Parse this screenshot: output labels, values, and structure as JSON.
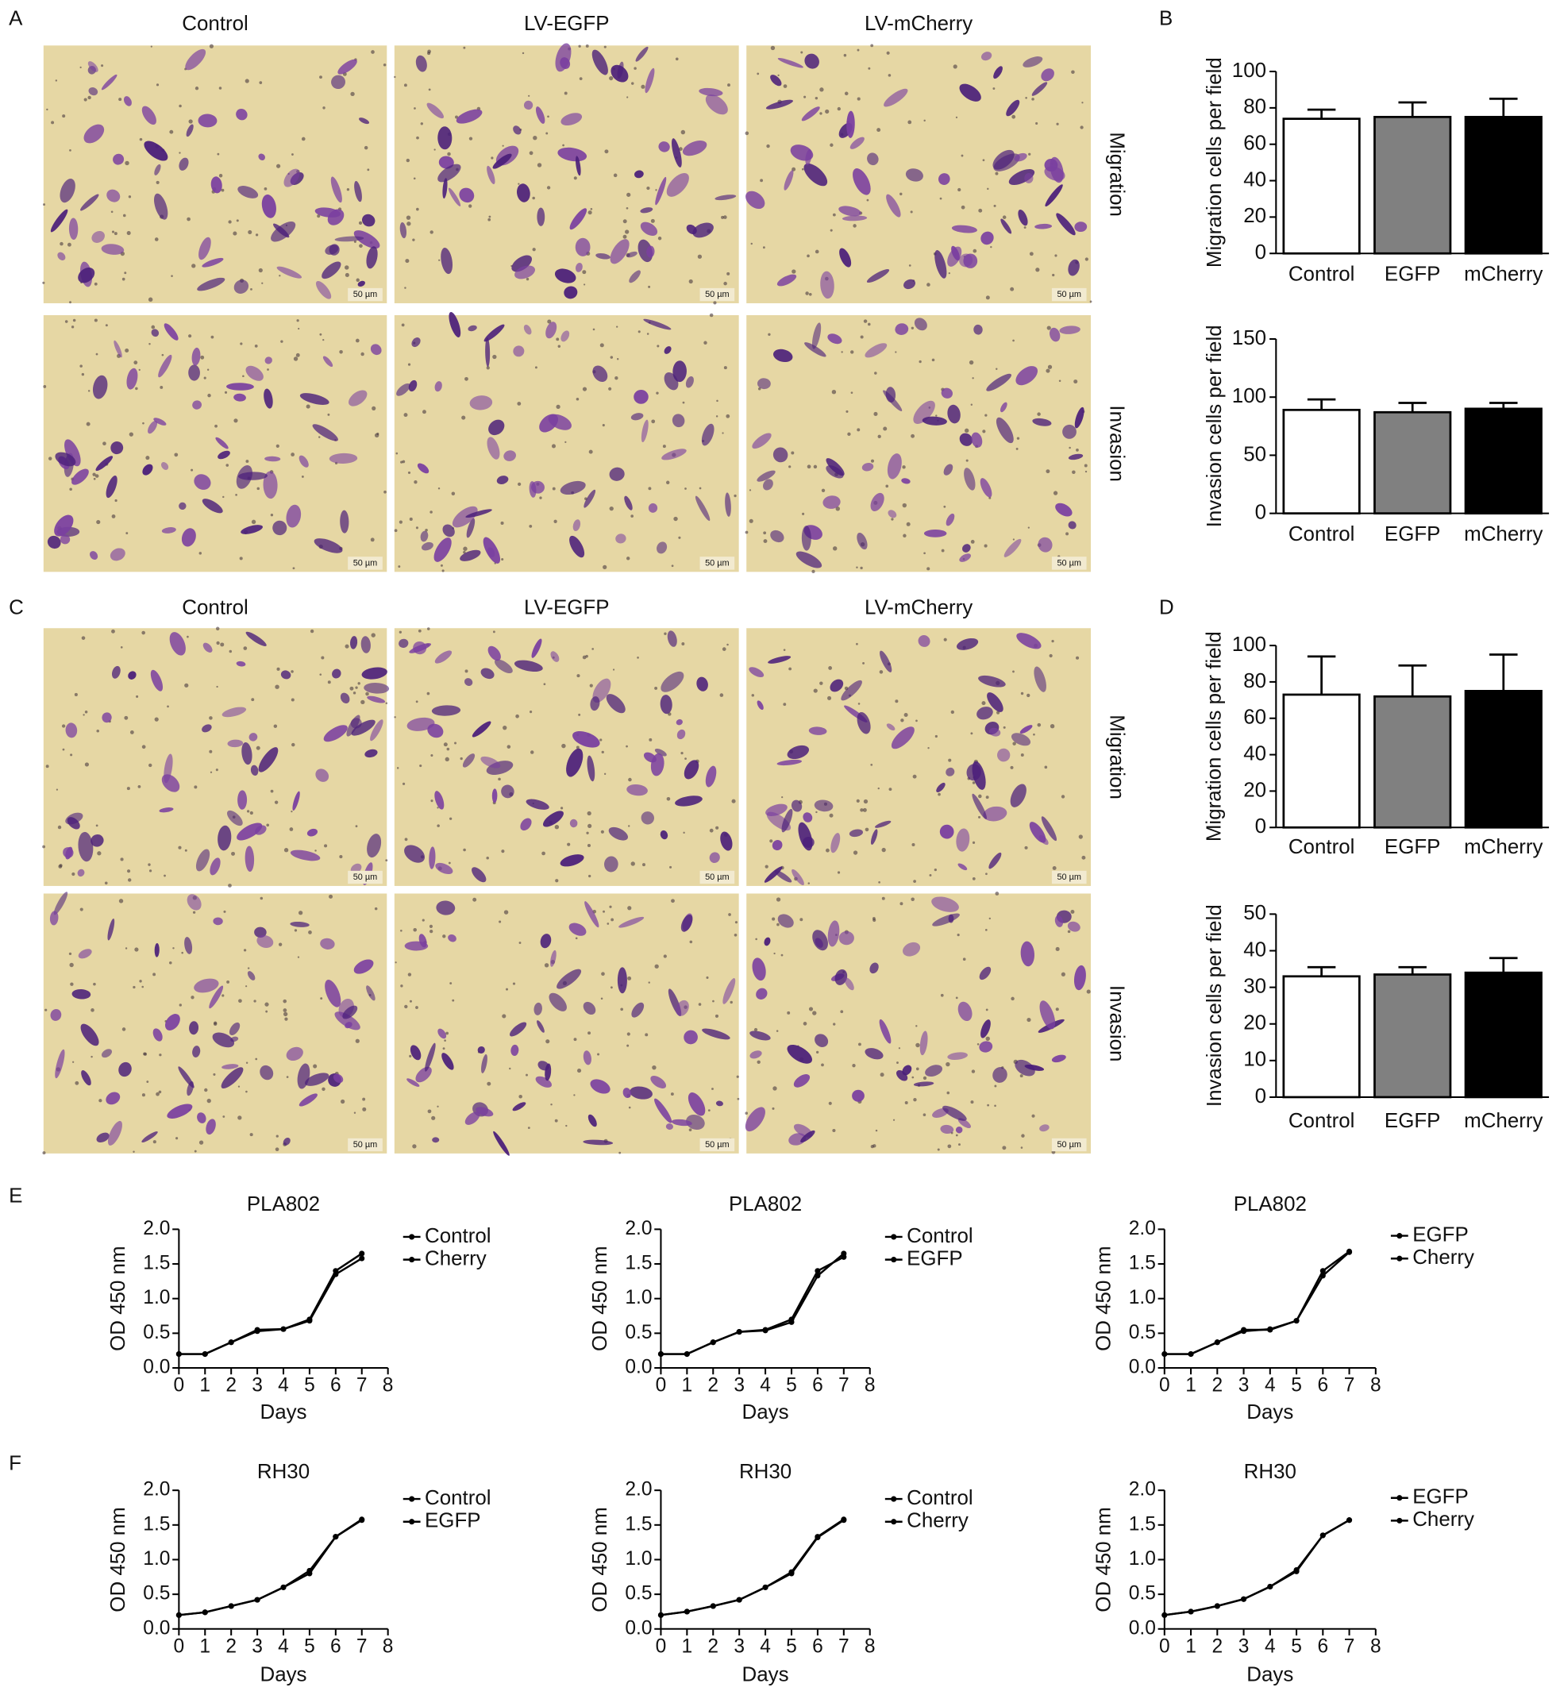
{
  "panel_labels": [
    "A",
    "B",
    "C",
    "D",
    "E",
    "F"
  ],
  "micrographs": [
    {
      "columns": [
        "Control",
        "LV-EGFP",
        "LV-mCherry"
      ],
      "rows": [
        "Migration",
        "Invasion"
      ],
      "scale_bar": "50 µm"
    },
    {
      "columns": [
        "Control",
        "LV-EGFP",
        "LV-mCherry"
      ],
      "rows": [
        "Migration",
        "Invasion"
      ],
      "scale_bar": "50 µm"
    }
  ],
  "chart_data": [
    {
      "type": "bar",
      "y_label": "Migration cells per field",
      "categories": [
        "Control",
        "EGFP",
        "mCherry"
      ],
      "values": [
        74,
        75,
        75
      ],
      "errors": [
        5,
        8,
        10
      ],
      "colors": [
        "#ffffff",
        "#808080",
        "#000000"
      ],
      "ylim": [
        0,
        100
      ],
      "yticks": [
        0,
        20,
        40,
        60,
        80,
        100
      ]
    },
    {
      "type": "bar",
      "y_label": "Invasion cells per field",
      "categories": [
        "Control",
        "EGFP",
        "mCherry"
      ],
      "values": [
        89,
        87,
        90
      ],
      "errors": [
        9,
        8,
        5
      ],
      "colors": [
        "#ffffff",
        "#808080",
        "#000000"
      ],
      "ylim": [
        0,
        150
      ],
      "yticks": [
        0,
        50,
        100,
        150
      ]
    },
    {
      "type": "bar",
      "y_label": "Migration cells per field",
      "categories": [
        "Control",
        "EGFP",
        "mCherry"
      ],
      "values": [
        73,
        72,
        75
      ],
      "errors": [
        21,
        17,
        20
      ],
      "colors": [
        "#ffffff",
        "#808080",
        "#000000"
      ],
      "ylim": [
        0,
        100
      ],
      "yticks": [
        0,
        20,
        40,
        60,
        80,
        100
      ]
    },
    {
      "type": "bar",
      "y_label": "Invasion cells per field",
      "categories": [
        "Control",
        "EGFP",
        "mCherry"
      ],
      "values": [
        33,
        33.5,
        34
      ],
      "errors": [
        2.5,
        2,
        4
      ],
      "colors": [
        "#ffffff",
        "#808080",
        "#000000"
      ],
      "ylim": [
        0,
        50
      ],
      "yticks": [
        0,
        10,
        20,
        30,
        40,
        50
      ]
    },
    {
      "type": "line",
      "title": "PLA802",
      "x_label": "Days",
      "y_label": "OD 450 nm",
      "x": [
        0,
        1,
        2,
        3,
        4,
        5,
        6,
        7
      ],
      "xlim": [
        0,
        8
      ],
      "xticks": [
        0,
        1,
        2,
        3,
        4,
        5,
        6,
        7,
        8
      ],
      "ylim": [
        0,
        2
      ],
      "yticks": [
        {
          "value": 0,
          "label": "0.0"
        },
        0.5,
        {
          "value": 1,
          "label": "1.0"
        },
        1.5,
        {
          "value": 2,
          "label": "2.0"
        }
      ],
      "series": [
        {
          "name": "Control",
          "color": "#000000",
          "values": [
            0.2,
            0.2,
            0.37,
            0.53,
            0.56,
            0.7,
            1.4,
            1.65
          ]
        },
        {
          "name": "Cherry",
          "color": "#000000",
          "values": [
            0.2,
            0.2,
            0.37,
            0.55,
            0.56,
            0.68,
            1.35,
            1.58
          ]
        }
      ]
    },
    {
      "type": "line",
      "title": "PLA802",
      "x_label": "Days",
      "y_label": "OD 450 nm",
      "x": [
        0,
        1,
        2,
        3,
        4,
        5,
        6,
        7
      ],
      "xlim": [
        0,
        8
      ],
      "xticks": [
        0,
        1,
        2,
        3,
        4,
        5,
        6,
        7,
        8
      ],
      "ylim": [
        0,
        2
      ],
      "yticks": [
        {
          "value": 0,
          "label": "0.0"
        },
        0.5,
        {
          "value": 1,
          "label": "1.0"
        },
        1.5,
        {
          "value": 2,
          "label": "2.0"
        }
      ],
      "series": [
        {
          "name": "Control",
          "color": "#000000",
          "values": [
            0.2,
            0.2,
            0.37,
            0.52,
            0.55,
            0.7,
            1.4,
            1.6
          ]
        },
        {
          "name": "EGFP",
          "color": "#000000",
          "values": [
            0.2,
            0.2,
            0.37,
            0.52,
            0.54,
            0.66,
            1.33,
            1.65
          ]
        }
      ]
    },
    {
      "type": "line",
      "title": "PLA802",
      "x_label": "Days",
      "y_label": "OD 450 nm",
      "x": [
        0,
        1,
        2,
        3,
        4,
        5,
        6,
        7
      ],
      "xlim": [
        0,
        8
      ],
      "xticks": [
        0,
        1,
        2,
        3,
        4,
        5,
        6,
        7,
        8
      ],
      "ylim": [
        0,
        2
      ],
      "yticks": [
        {
          "value": 0,
          "label": "0.0"
        },
        0.5,
        {
          "value": 1,
          "label": "1.0"
        },
        1.5,
        {
          "value": 2,
          "label": "2.0"
        }
      ],
      "series": [
        {
          "name": "EGFP",
          "color": "#000000",
          "values": [
            0.2,
            0.2,
            0.37,
            0.53,
            0.56,
            0.68,
            1.4,
            1.68
          ]
        },
        {
          "name": "Cherry",
          "color": "#000000",
          "values": [
            0.2,
            0.2,
            0.37,
            0.55,
            0.55,
            0.68,
            1.33,
            1.67
          ]
        }
      ]
    },
    {
      "type": "line",
      "title": "RH30",
      "x_label": "Days",
      "y_label": "OD 450 nm",
      "x": [
        0,
        1,
        2,
        3,
        4,
        5,
        6,
        7
      ],
      "xlim": [
        0,
        8
      ],
      "xticks": [
        0,
        1,
        2,
        3,
        4,
        5,
        6,
        7,
        8
      ],
      "ylim": [
        0,
        2
      ],
      "yticks": [
        {
          "value": 0,
          "label": "0.0"
        },
        0.5,
        {
          "value": 1,
          "label": "1.0"
        },
        1.5,
        {
          "value": 2,
          "label": "2.0"
        }
      ],
      "series": [
        {
          "name": "Control",
          "color": "#000000",
          "values": [
            0.2,
            0.24,
            0.33,
            0.42,
            0.6,
            0.8,
            1.33,
            1.57
          ]
        },
        {
          "name": "EGFP",
          "color": "#000000",
          "values": [
            0.2,
            0.24,
            0.33,
            0.42,
            0.6,
            0.84,
            1.33,
            1.58
          ]
        }
      ]
    },
    {
      "type": "line",
      "title": "RH30",
      "x_label": "Days",
      "y_label": "OD 450 nm",
      "x": [
        0,
        1,
        2,
        3,
        4,
        5,
        6,
        7
      ],
      "xlim": [
        0,
        8
      ],
      "xticks": [
        0,
        1,
        2,
        3,
        4,
        5,
        6,
        7,
        8
      ],
      "ylim": [
        0,
        2
      ],
      "yticks": [
        {
          "value": 0,
          "label": "0.0"
        },
        0.5,
        {
          "value": 1,
          "label": "1.0"
        },
        1.5,
        {
          "value": 2,
          "label": "2.0"
        }
      ],
      "series": [
        {
          "name": "Control",
          "color": "#000000",
          "values": [
            0.2,
            0.25,
            0.33,
            0.42,
            0.6,
            0.8,
            1.32,
            1.57
          ]
        },
        {
          "name": "Cherry",
          "color": "#000000",
          "values": [
            0.2,
            0.25,
            0.33,
            0.42,
            0.6,
            0.82,
            1.33,
            1.58
          ]
        }
      ]
    },
    {
      "type": "line",
      "title": "RH30",
      "x_label": "Days",
      "y_label": "OD 450 nm",
      "x": [
        0,
        1,
        2,
        3,
        4,
        5,
        6,
        7
      ],
      "xlim": [
        0,
        8
      ],
      "xticks": [
        0,
        1,
        2,
        3,
        4,
        5,
        6,
        7,
        8
      ],
      "ylim": [
        0,
        2
      ],
      "yticks": [
        {
          "value": 0,
          "label": "0.0"
        },
        0.5,
        {
          "value": 1,
          "label": "1.0"
        },
        1.5,
        {
          "value": 2,
          "label": "2.0"
        }
      ],
      "series": [
        {
          "name": "EGFP",
          "color": "#000000",
          "values": [
            0.2,
            0.25,
            0.33,
            0.43,
            0.61,
            0.83,
            1.35,
            1.57
          ]
        },
        {
          "name": "Cherry",
          "color": "#000000",
          "values": [
            0.2,
            0.25,
            0.33,
            0.43,
            0.61,
            0.85,
            1.35,
            1.57
          ]
        }
      ]
    }
  ]
}
